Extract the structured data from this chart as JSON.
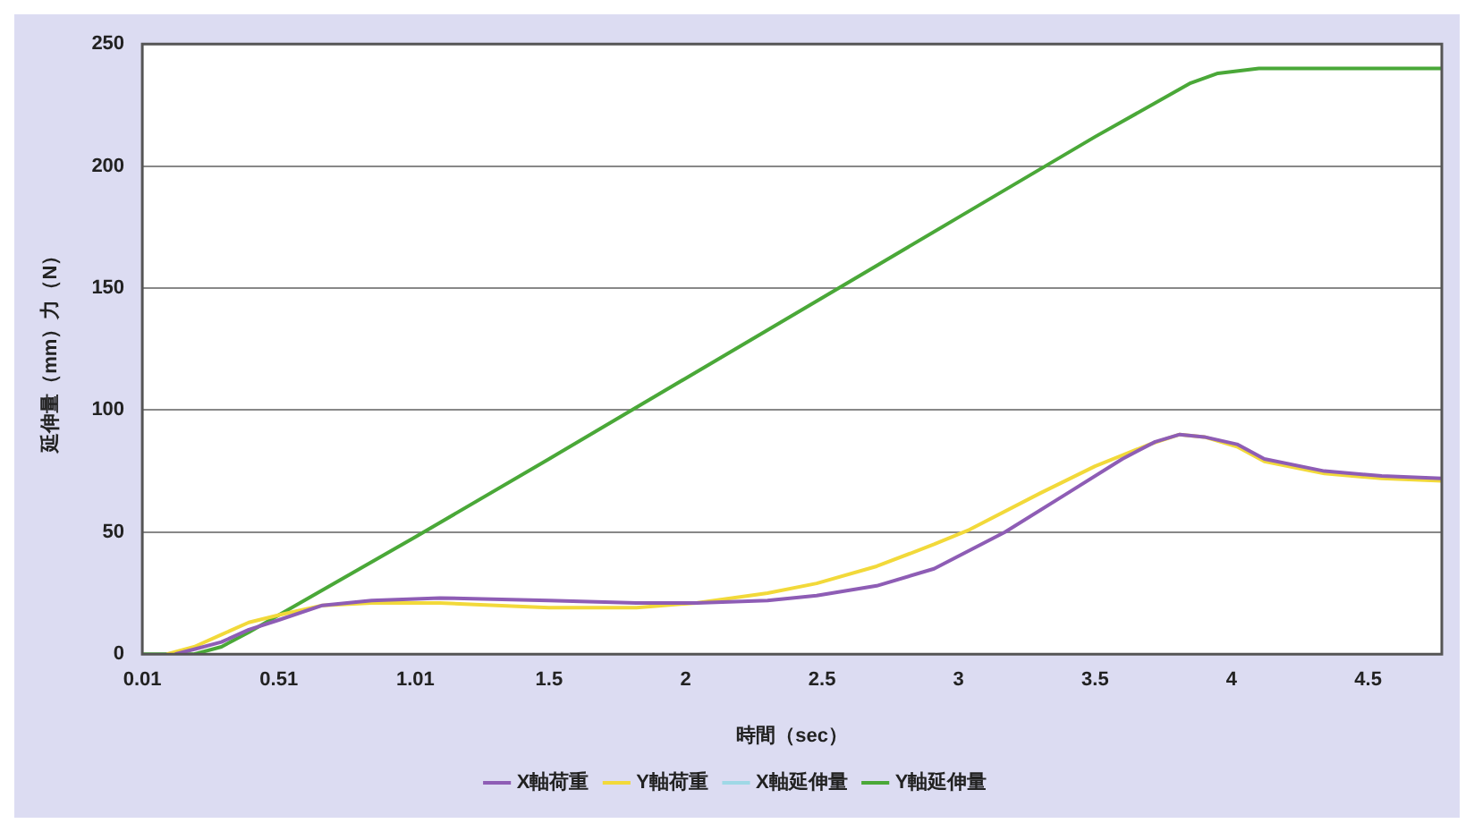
{
  "chart_data": {
    "type": "line",
    "xlabel": "時間（sec）",
    "ylabel": "延伸量（mm）力（N）",
    "xlim": [
      0.01,
      4.77
    ],
    "xticks": [
      0.01,
      0.51,
      1.01,
      1.5,
      2,
      2.5,
      3,
      3.5,
      4,
      4.5
    ],
    "ylim": [
      0,
      250
    ],
    "yticks": [
      0,
      50,
      100,
      150,
      200,
      250
    ],
    "grid": "y",
    "legend": "bottom",
    "marker": "none",
    "line_style": "solid",
    "series": [
      {
        "name": "X軸荷重",
        "color": "#8e5db5",
        "x": [
          0.13,
          0.2,
          0.3,
          0.4,
          0.51,
          0.67,
          0.85,
          1.1,
          1.5,
          1.82,
          2.04,
          2.3,
          2.48,
          2.7,
          2.91,
          3.17,
          3.4,
          3.6,
          3.72,
          3.81,
          3.9,
          4.02,
          4.12,
          4.34,
          4.55,
          4.77
        ],
        "values": [
          0,
          2,
          5,
          10,
          14,
          20,
          22,
          23,
          22,
          21,
          21,
          22,
          24,
          28,
          35,
          50,
          66,
          80,
          87,
          90,
          89,
          86,
          80,
          75,
          73,
          72
        ]
      },
      {
        "name": "Y軸荷重",
        "color": "#f2d93a",
        "x": [
          0.1,
          0.2,
          0.3,
          0.4,
          0.51,
          0.67,
          0.85,
          1.1,
          1.5,
          1.82,
          2.04,
          2.3,
          2.48,
          2.7,
          2.91,
          3.04,
          3.3,
          3.5,
          3.7,
          3.81,
          3.9,
          4.02,
          4.12,
          4.34,
          4.55,
          4.77
        ],
        "values": [
          0,
          3,
          8,
          13,
          16,
          20,
          21,
          21,
          19,
          19,
          21,
          25,
          29,
          36,
          45,
          51,
          66,
          77,
          86,
          90,
          89,
          85,
          79,
          74,
          72,
          71
        ]
      },
      {
        "name": "X軸延伸量",
        "color": "#9fd8e6"
      },
      {
        "name": "Y軸延伸量",
        "color": "#4aa838",
        "x": [
          0.01,
          0.2,
          0.3,
          0.4,
          0.51,
          1.01,
          1.5,
          2,
          2.5,
          3,
          3.5,
          3.85,
          3.95,
          4.1,
          4.77
        ],
        "values": [
          0,
          0,
          3,
          9,
          16,
          48,
          80,
          113,
          146,
          179,
          212,
          234,
          238,
          240,
          240
        ]
      }
    ]
  }
}
